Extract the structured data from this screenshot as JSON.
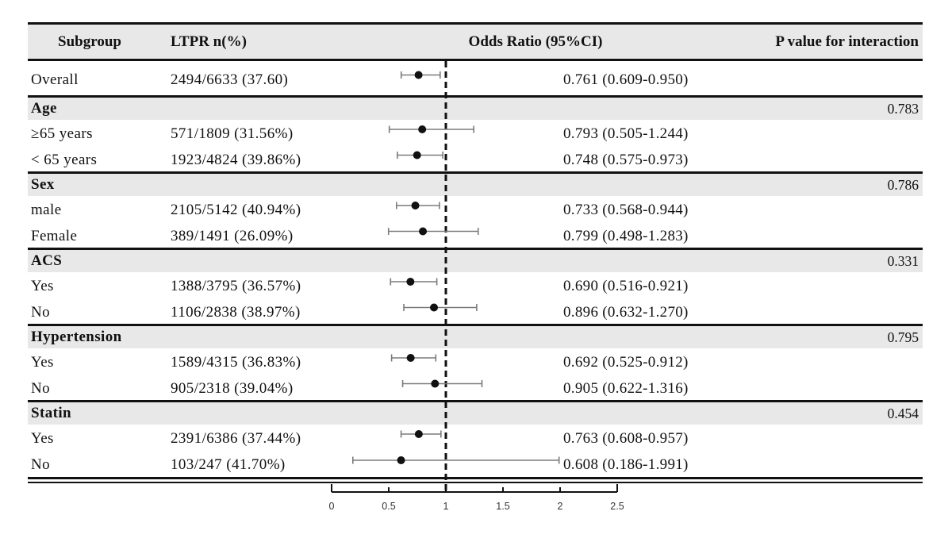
{
  "header": {
    "subgroup": "Subgroup",
    "ltpr": "LTPR n(%)",
    "odds_ratio": "Odds Ratio (95%CI)",
    "p_value": "P value for interaction"
  },
  "rows": [
    {
      "type": "data",
      "subgroup": "Overall",
      "ltpr": "2494/6633 (37.60)",
      "or_text": "0.761 (0.609-0.950)",
      "or": 0.761,
      "ci_low": 0.609,
      "ci_high": 0.95
    },
    {
      "type": "section",
      "subgroup": "Age",
      "p": "0.783"
    },
    {
      "type": "data",
      "subgroup": "≥65 years",
      "ltpr": "571/1809 (31.56%)",
      "or_text": "0.793 (0.505-1.244)",
      "or": 0.793,
      "ci_low": 0.505,
      "ci_high": 1.244
    },
    {
      "type": "data",
      "subgroup": "< 65 years",
      "ltpr": "1923/4824 (39.86%)",
      "or_text": "0.748 (0.575-0.973)",
      "or": 0.748,
      "ci_low": 0.575,
      "ci_high": 0.973
    },
    {
      "type": "section",
      "subgroup": "Sex",
      "p": "0.786"
    },
    {
      "type": "data",
      "subgroup": "male",
      "ltpr": "2105/5142 (40.94%)",
      "or_text": "0.733 (0.568-0.944)",
      "or": 0.733,
      "ci_low": 0.568,
      "ci_high": 0.944
    },
    {
      "type": "data",
      "subgroup": "Female",
      "ltpr": "389/1491 (26.09%)",
      "or_text": "0.799 (0.498-1.283)",
      "or": 0.799,
      "ci_low": 0.498,
      "ci_high": 1.283
    },
    {
      "type": "section",
      "subgroup": "ACS",
      "p": "0.331"
    },
    {
      "type": "data",
      "subgroup": "Yes",
      "ltpr": "1388/3795 (36.57%)",
      "or_text": "0.690 (0.516-0.921)",
      "or": 0.69,
      "ci_low": 0.516,
      "ci_high": 0.921
    },
    {
      "type": "data",
      "subgroup": "No",
      "ltpr": "1106/2838 (38.97%)",
      "or_text": "0.896 (0.632-1.270)",
      "or": 0.896,
      "ci_low": 0.632,
      "ci_high": 1.27
    },
    {
      "type": "section",
      "subgroup": "Hypertension",
      "p": "0.795"
    },
    {
      "type": "data",
      "subgroup": "Yes",
      "ltpr": "1589/4315 (36.83%)",
      "or_text": "0.692 (0.525-0.912)",
      "or": 0.692,
      "ci_low": 0.525,
      "ci_high": 0.912
    },
    {
      "type": "data",
      "subgroup": "No",
      "ltpr": "905/2318 (39.04%)",
      "or_text": "0.905 (0.622-1.316)",
      "or": 0.905,
      "ci_low": 0.622,
      "ci_high": 1.316
    },
    {
      "type": "section",
      "subgroup": "Statin",
      "p": "0.454"
    },
    {
      "type": "data",
      "subgroup": "Yes",
      "ltpr": "2391/6386 (37.44%)",
      "or_text": "0.763 (0.608-0.957)",
      "or": 0.763,
      "ci_low": 0.608,
      "ci_high": 0.957
    },
    {
      "type": "data",
      "subgroup": "No",
      "ltpr": "103/247 (41.70%)",
      "or_text": "0.608 (0.186-1.991)",
      "or": 0.608,
      "ci_low": 0.186,
      "ci_high": 1.991
    }
  ],
  "axis": {
    "tick_labels": [
      "0",
      "0.5",
      "1",
      "1.5",
      "2",
      "2.5"
    ],
    "tick_values": [
      0,
      0.5,
      1,
      1.5,
      2,
      2.5
    ]
  },
  "colors": {
    "band": "#e8e8e8",
    "line": "#111111",
    "ci_bar": "#7b7b7b",
    "dot": "#111111"
  },
  "chart_data": {
    "type": "scatter",
    "subtype": "forest-plot",
    "title": "",
    "xlabel": "Odds Ratio (95%CI)",
    "xlim": [
      0,
      2.5
    ],
    "x_ticks": [
      0,
      0.5,
      1,
      1.5,
      2,
      2.5
    ],
    "reference_line": 1.0,
    "legend": "none",
    "points": [
      {
        "label": "Overall",
        "group": "",
        "or": 0.761,
        "ci_low": 0.609,
        "ci_high": 0.95,
        "ltpr_n": "2494/6633",
        "ltpr_pct": 37.6
      },
      {
        "label": "≥65 years",
        "group": "Age",
        "or": 0.793,
        "ci_low": 0.505,
        "ci_high": 1.244,
        "ltpr_n": "571/1809",
        "ltpr_pct": 31.56,
        "p_interaction": 0.783
      },
      {
        "label": "< 65 years",
        "group": "Age",
        "or": 0.748,
        "ci_low": 0.575,
        "ci_high": 0.973,
        "ltpr_n": "1923/4824",
        "ltpr_pct": 39.86,
        "p_interaction": 0.783
      },
      {
        "label": "male",
        "group": "Sex",
        "or": 0.733,
        "ci_low": 0.568,
        "ci_high": 0.944,
        "ltpr_n": "2105/5142",
        "ltpr_pct": 40.94,
        "p_interaction": 0.786
      },
      {
        "label": "Female",
        "group": "Sex",
        "or": 0.799,
        "ci_low": 0.498,
        "ci_high": 1.283,
        "ltpr_n": "389/1491",
        "ltpr_pct": 26.09,
        "p_interaction": 0.786
      },
      {
        "label": "Yes",
        "group": "ACS",
        "or": 0.69,
        "ci_low": 0.516,
        "ci_high": 0.921,
        "ltpr_n": "1388/3795",
        "ltpr_pct": 36.57,
        "p_interaction": 0.331
      },
      {
        "label": "No",
        "group": "ACS",
        "or": 0.896,
        "ci_low": 0.632,
        "ci_high": 1.27,
        "ltpr_n": "1106/2838",
        "ltpr_pct": 38.97,
        "p_interaction": 0.331
      },
      {
        "label": "Yes",
        "group": "Hypertension",
        "or": 0.692,
        "ci_low": 0.525,
        "ci_high": 0.912,
        "ltpr_n": "1589/4315",
        "ltpr_pct": 36.83,
        "p_interaction": 0.795
      },
      {
        "label": "No",
        "group": "Hypertension",
        "or": 0.905,
        "ci_low": 0.622,
        "ci_high": 1.316,
        "ltpr_n": "905/2318",
        "ltpr_pct": 39.04,
        "p_interaction": 0.795
      },
      {
        "label": "Yes",
        "group": "Statin",
        "or": 0.763,
        "ci_low": 0.608,
        "ci_high": 0.957,
        "ltpr_n": "2391/6386",
        "ltpr_pct": 37.44,
        "p_interaction": 0.454
      },
      {
        "label": "No",
        "group": "Statin",
        "or": 0.608,
        "ci_low": 0.186,
        "ci_high": 1.991,
        "ltpr_n": "103/247",
        "ltpr_pct": 41.7,
        "p_interaction": 0.454
      }
    ]
  }
}
